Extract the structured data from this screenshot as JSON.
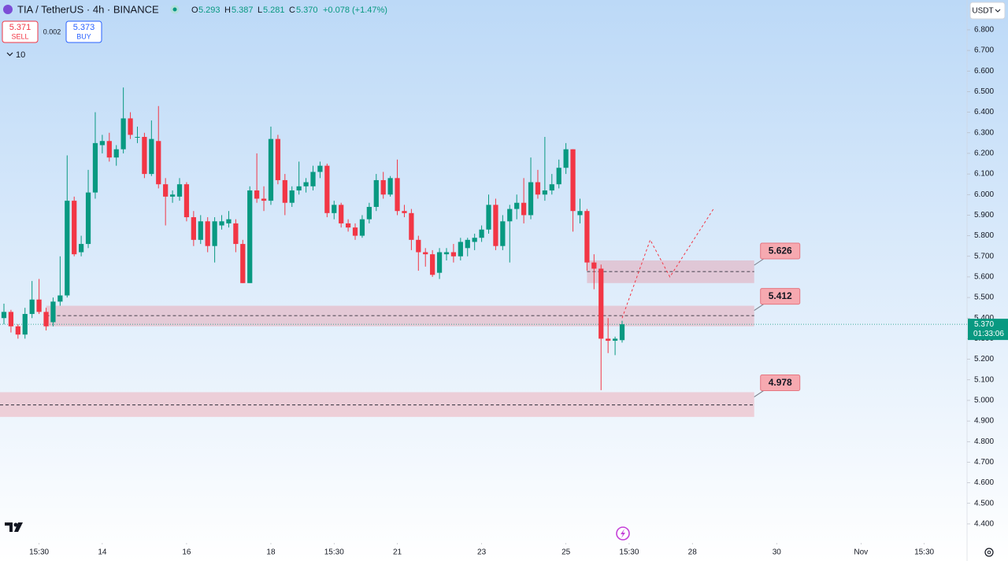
{
  "chart_data": {
    "type": "candlestick",
    "symbol": "TIA / TetherUS · 4h · BINANCE",
    "ohlc_legend": {
      "o_label": "O",
      "o": "5.293",
      "h_label": "H",
      "h": "5.387",
      "l_label": "L",
      "l": "5.281",
      "c_label": "C",
      "c": "5.370",
      "change": "+0.078 (+1.47%)"
    },
    "trade": {
      "sell_price": "5.371",
      "sell": "SELL",
      "spread": "0.002",
      "buy_price": "5.373",
      "buy": "BUY"
    },
    "indicator_count": "10",
    "currency": "USDT",
    "up_color": "#089981",
    "down_color": "#f23645",
    "x": [
      0,
      1,
      2,
      3,
      4,
      5,
      6,
      7,
      8,
      9,
      10,
      11,
      12,
      13,
      14,
      15,
      16,
      17,
      18,
      19,
      20,
      21,
      22,
      23,
      24,
      25,
      26,
      27,
      28,
      29,
      30,
      31,
      32,
      33,
      34,
      35,
      36,
      37,
      38,
      39,
      40,
      41,
      42,
      43,
      44,
      45,
      46,
      47,
      48,
      49,
      50,
      51,
      52,
      53,
      54,
      55,
      56,
      57,
      58,
      59,
      60,
      61,
      62,
      63,
      64,
      65,
      66,
      67,
      68,
      69,
      70,
      71,
      72,
      73,
      74,
      75,
      76,
      77,
      78,
      79,
      80,
      81,
      82,
      83,
      84,
      85,
      86,
      87,
      88
    ],
    "open": [
      5.4,
      5.43,
      5.36,
      5.32,
      5.42,
      5.49,
      5.43,
      5.38,
      5.48,
      5.51,
      5.97,
      5.72,
      5.76,
      6.01,
      6.24,
      6.26,
      6.18,
      6.22,
      6.37,
      6.28,
      6.28,
      6.1,
      6.26,
      6.05,
      5.99,
      5.99,
      6.05,
      5.89,
      5.78,
      5.87,
      5.75,
      5.85,
      5.86,
      5.86,
      5.76,
      5.57,
      6.02,
      5.98,
      5.97,
      6.27,
      6.07,
      5.96,
      6.02,
      6.04,
      6.04,
      6.11,
      6.14,
      5.91,
      5.95,
      5.86,
      5.84,
      5.8,
      5.88,
      5.94,
      6.07,
      6.0,
      6.08,
      5.92,
      5.91,
      5.78,
      5.72,
      5.71,
      5.62,
      5.71,
      5.72,
      5.7,
      5.74,
      5.77,
      5.79,
      5.83,
      5.95,
      5.75,
      5.87,
      5.93,
      5.96,
      5.9,
      6.06,
      6.0,
      6.02,
      6.05,
      6.13,
      6.22,
      5.9,
      5.92,
      5.67,
      5.64,
      5.3,
      5.29,
      5.293
    ],
    "high": [
      5.47,
      5.44,
      5.37,
      5.45,
      5.58,
      5.59,
      5.45,
      5.5,
      5.7,
      6.19,
      5.99,
      5.8,
      6.12,
      6.4,
      6.29,
      6.3,
      6.24,
      6.52,
      6.4,
      6.33,
      6.3,
      6.36,
      6.43,
      6.08,
      6.02,
      6.08,
      6.06,
      5.92,
      5.9,
      5.89,
      5.89,
      5.9,
      5.92,
      5.88,
      5.78,
      6.04,
      6.2,
      6.04,
      6.33,
      6.29,
      6.1,
      6.04,
      6.16,
      6.08,
      6.14,
      6.16,
      6.15,
      5.97,
      5.96,
      5.88,
      5.86,
      5.9,
      5.96,
      6.1,
      6.11,
      6.09,
      6.17,
      5.95,
      5.93,
      5.8,
      5.74,
      5.73,
      5.74,
      5.74,
      5.76,
      5.79,
      5.79,
      5.81,
      5.85,
      6.0,
      5.98,
      5.9,
      5.95,
      6.0,
      6.08,
      6.18,
      6.12,
      6.28,
      6.1,
      6.17,
      6.25,
      6.22,
      5.98,
      5.93,
      5.71,
      5.66,
      5.4,
      5.31,
      5.387
    ],
    "low": [
      5.37,
      5.33,
      5.3,
      5.3,
      5.4,
      5.42,
      5.34,
      5.36,
      5.46,
      5.5,
      5.7,
      5.7,
      5.74,
      5.98,
      6.2,
      6.16,
      6.14,
      6.2,
      6.27,
      6.25,
      6.08,
      6.09,
      6.03,
      5.85,
      5.96,
      5.97,
      5.87,
      5.75,
      5.76,
      5.72,
      5.67,
      5.83,
      5.84,
      5.72,
      5.57,
      5.57,
      5.96,
      5.92,
      5.95,
      6.05,
      5.9,
      5.94,
      6.0,
      6.01,
      6.02,
      6.08,
      5.89,
      5.88,
      5.84,
      5.82,
      5.78,
      5.79,
      5.86,
      5.92,
      5.98,
      5.99,
      5.9,
      5.89,
      5.73,
      5.63,
      5.65,
      5.6,
      5.59,
      5.68,
      5.67,
      5.68,
      5.7,
      5.73,
      5.77,
      5.81,
      5.73,
      5.73,
      5.67,
      5.88,
      5.86,
      5.88,
      5.98,
      5.97,
      6.0,
      6.03,
      6.1,
      5.82,
      5.86,
      5.63,
      5.54,
      5.05,
      5.23,
      5.22,
      5.281
    ],
    "close": [
      5.43,
      5.36,
      5.32,
      5.42,
      5.49,
      5.43,
      5.36,
      5.48,
      5.51,
      5.97,
      5.71,
      5.76,
      6.01,
      6.25,
      6.26,
      6.18,
      6.22,
      6.37,
      6.29,
      6.28,
      6.1,
      6.27,
      6.05,
      5.99,
      6.0,
      6.05,
      5.89,
      5.78,
      5.87,
      5.75,
      5.87,
      5.87,
      5.88,
      5.76,
      5.57,
      6.02,
      5.98,
      5.97,
      6.27,
      6.07,
      5.96,
      6.02,
      6.04,
      6.06,
      6.11,
      6.14,
      5.91,
      5.95,
      5.86,
      5.84,
      5.8,
      5.88,
      5.94,
      6.07,
      6.0,
      6.08,
      5.92,
      5.91,
      5.78,
      5.72,
      5.71,
      5.61,
      5.72,
      5.72,
      5.7,
      5.77,
      5.78,
      5.79,
      5.83,
      5.95,
      5.75,
      5.87,
      5.93,
      5.96,
      5.9,
      6.06,
      6.0,
      6.02,
      6.05,
      6.13,
      6.22,
      5.92,
      5.92,
      5.67,
      5.64,
      5.3,
      5.29,
      5.3,
      5.37
    ],
    "zones": [
      {
        "value": 5.626,
        "label": "5.626",
        "low": 5.57,
        "high": 5.68,
        "x_start": 83
      },
      {
        "value": 5.412,
        "label": "5.412",
        "low": 5.36,
        "high": 5.46,
        "x_start": 6
      },
      {
        "value": 4.978,
        "label": "4.978",
        "low": 4.92,
        "high": 5.04,
        "x_start": -0.56
      }
    ],
    "zone_end_x": 106.8,
    "projection": {
      "x": [
        88,
        92,
        94.8,
        101
      ],
      "values": [
        5.4,
        5.78,
        5.6,
        5.93
      ],
      "color": "#f23645"
    },
    "last_price": {
      "value": 5.37,
      "label": "5.370",
      "countdown": "01:33:06"
    },
    "xlim": [
      -0.56,
      137.1
    ],
    "ylim": [
      4.308,
      6.945
    ],
    "xticks": [
      {
        "value": 5,
        "label": "15:30"
      },
      {
        "value": 14,
        "label": "14"
      },
      {
        "value": 26,
        "label": "16"
      },
      {
        "value": 38,
        "label": "18"
      },
      {
        "value": 47,
        "label": "15:30"
      },
      {
        "value": 56,
        "label": "21"
      },
      {
        "value": 68,
        "label": "23"
      },
      {
        "value": 80,
        "label": "25"
      },
      {
        "value": 89,
        "label": "15:30"
      },
      {
        "value": 98,
        "label": "28"
      },
      {
        "value": 110,
        "label": "30"
      },
      {
        "value": 122,
        "label": "Nov"
      },
      {
        "value": 131,
        "label": "15:30"
      }
    ],
    "yticks": [
      {
        "value": 4.4,
        "label": "4.400"
      },
      {
        "value": 4.5,
        "label": "4.500"
      },
      {
        "value": 4.6,
        "label": "4.600"
      },
      {
        "value": 4.7,
        "label": "4.700"
      },
      {
        "value": 4.8,
        "label": "4.800"
      },
      {
        "value": 4.9,
        "label": "4.900"
      },
      {
        "value": 5.0,
        "label": "5.000"
      },
      {
        "value": 5.1,
        "label": "5.100"
      },
      {
        "value": 5.2,
        "label": "5.200"
      },
      {
        "value": 5.3,
        "label": "5.300"
      },
      {
        "value": 5.4,
        "label": "5.400"
      },
      {
        "value": 5.5,
        "label": "5.500"
      },
      {
        "value": 5.6,
        "label": "5.600"
      },
      {
        "value": 5.7,
        "label": "5.700"
      },
      {
        "value": 5.8,
        "label": "5.800"
      },
      {
        "value": 5.9,
        "label": "5.900"
      },
      {
        "value": 6.0,
        "label": "6.000"
      },
      {
        "value": 6.1,
        "label": "6.100"
      },
      {
        "value": 6.2,
        "label": "6.200"
      },
      {
        "value": 6.3,
        "label": "6.300"
      },
      {
        "value": 6.4,
        "label": "6.400"
      },
      {
        "value": 6.5,
        "label": "6.500"
      },
      {
        "value": 6.6,
        "label": "6.600"
      },
      {
        "value": 6.7,
        "label": "6.700"
      },
      {
        "value": 6.8,
        "label": "6.800"
      }
    ]
  }
}
